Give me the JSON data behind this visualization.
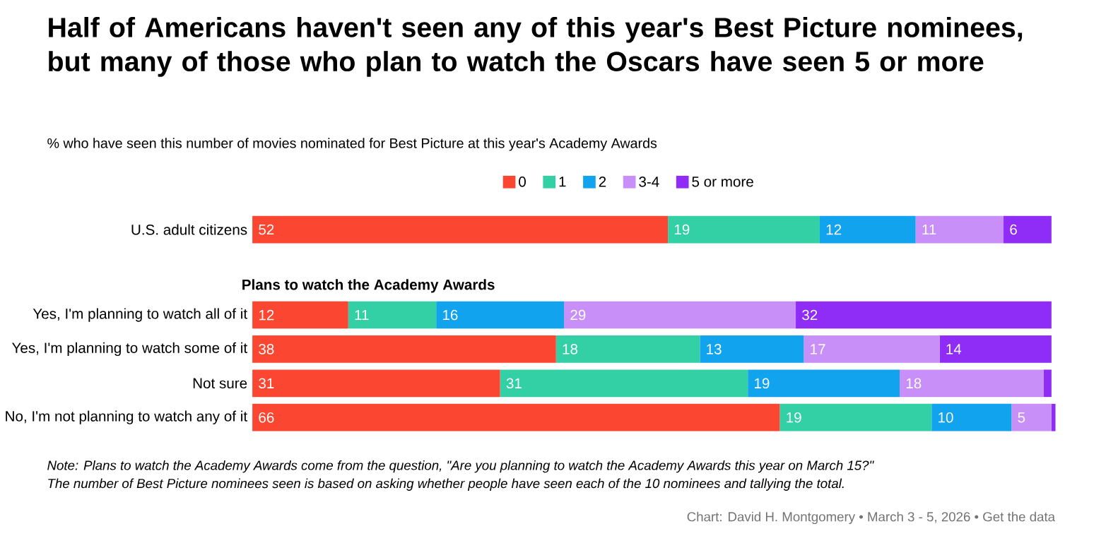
{
  "chart_data": {
    "type": "bar",
    "orientation": "horizontal",
    "stacked": true,
    "legend": "top",
    "title": "Half of Americans haven't seen any of this year's Best Picture nominees, but many of those who plan to watch the Oscars have seen 5 or more",
    "subtitle": "% who have seen this number of movies nominated for Best Picture at this year's Academy Awards",
    "categories": [
      "U.S. adult citizens",
      "Yes, I'm planning to watch all of it",
      "Yes, I'm planning to watch some of it",
      "Not sure",
      "No, I'm not planning to watch any of it"
    ],
    "series": [
      {
        "name": "0",
        "color": "#fb4731",
        "values": [
          52,
          12,
          38,
          31,
          66
        ],
        "value_labels": [
          "52",
          "12",
          "38",
          "31",
          "66"
        ]
      },
      {
        "name": "1",
        "color": "#33cfa5",
        "values": [
          19,
          11,
          18,
          31,
          19
        ],
        "value_labels": [
          "19",
          "11",
          "18",
          "31",
          "19"
        ]
      },
      {
        "name": "2",
        "color": "#12a3ee",
        "values": [
          12,
          16,
          13,
          19,
          10
        ],
        "value_labels": [
          "12",
          "16",
          "13",
          "19",
          "10"
        ]
      },
      {
        "name": "3-4",
        "color": "#c78ff7",
        "values": [
          11,
          29,
          17,
          18,
          5
        ],
        "value_labels": [
          "11",
          "29",
          "17",
          "18",
          "5"
        ]
      },
      {
        "name": "5 or more",
        "color": "#8f2cf5",
        "values": [
          6,
          32,
          14,
          1,
          0.5
        ],
        "value_labels": [
          "6",
          "32",
          "14",
          null,
          null
        ]
      }
    ],
    "annotations": [
      "Plans to watch the Academy Awards",
      "Note: Plans to watch the Academy Awards come from the question, \"Are you planning to watch the Academy Awards this year on March 15?\"",
      "The number of Best Picture nominees seen is based on asking whether people have seen each of the 10 nominees and tallying the total.",
      "Chart: David H. Montgomery • March 3 - 5, 2026 • Get the data"
    ]
  }
}
